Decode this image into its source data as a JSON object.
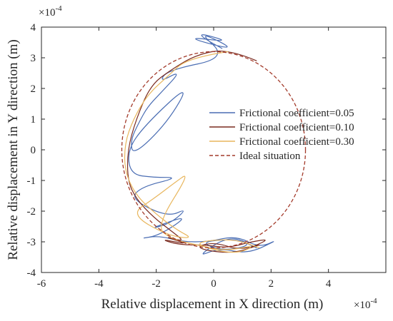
{
  "chart_data": {
    "type": "line",
    "title": "",
    "xlabel": "Relative displacement in X direction (m)",
    "ylabel": "Relative displacement in Y direction (m)",
    "xlim": [
      -6,
      6
    ],
    "ylim": [
      -4,
      4
    ],
    "x_scale_label": "×10",
    "x_scale_exp": "-4",
    "y_scale_label": "×10",
    "y_scale_exp": "-4",
    "xticks": [
      -6,
      -4,
      -2,
      0,
      2,
      4
    ],
    "yticks": [
      -4,
      -3,
      -2,
      -1,
      0,
      1,
      2,
      3,
      4
    ],
    "grid": false,
    "legend_position": "right",
    "series": [
      {
        "name": "Frictional coefficient=0.05",
        "color": "#4a6db3",
        "style": "solid",
        "x": [
          0.3,
          -0.9,
          0.7,
          -1.1,
          0.9,
          -0.6,
          0.5,
          -1.6,
          -1.9,
          -1.1,
          -1.9,
          -2.3,
          -2.6,
          -2.9,
          -2.8,
          -1.6,
          -0.8,
          -2.4,
          -3.0,
          -2.9,
          -2.1,
          -1.2,
          -2.5,
          -2.9,
          -1.6,
          -0.9,
          -1.5,
          -2.3,
          -0.8,
          -1.9,
          -2.6,
          -1.9,
          -1.1,
          -0.2,
          0.8,
          1.6,
          2.3,
          1.2,
          0.2,
          -0.6,
          0.5,
          1.4,
          0.3,
          -0.5,
          0.8,
          1.5
        ],
        "y": [
          3.3,
          3.9,
          3.5,
          3.7,
          3.2,
          3.9,
          3.0,
          2.6,
          2.2,
          2.6,
          1.8,
          1.4,
          0.9,
          0.3,
          -0.2,
          0.9,
          2.2,
          0.8,
          0.0,
          -0.8,
          -0.9,
          -0.9,
          -1.2,
          -1.6,
          -2.2,
          -1.9,
          -2.4,
          -2.6,
          -2.1,
          -2.8,
          -2.9,
          -2.8,
          -3.0,
          -3.0,
          -2.8,
          -3.2,
          -2.9,
          -3.4,
          -3.2,
          -3.5,
          -2.8,
          -3.1,
          -3.3,
          -3.0,
          -2.9,
          -3.2
        ]
      },
      {
        "name": "Frictional coefficient=0.10",
        "color": "#7a2a1f",
        "style": "solid",
        "x": [
          1.5,
          0.5,
          -0.6,
          -1.5,
          -2.2,
          -2.7,
          -3.0,
          -3.0,
          -2.7,
          -2.1,
          -1.4,
          -1.0,
          -1.8,
          -0.8,
          -1.9,
          -1.2,
          -0.3,
          0.5,
          1.3,
          2.0,
          1.0,
          0.0,
          -0.7,
          0.6,
          1.6
        ],
        "y": [
          2.9,
          3.3,
          3.1,
          2.6,
          2.1,
          1.0,
          0.0,
          -1.0,
          -1.6,
          -2.2,
          -2.7,
          -3.0,
          -2.8,
          -3.1,
          -2.9,
          -3.1,
          -3.1,
          -3.2,
          -3.0,
          -2.9,
          -3.3,
          -3.0,
          -3.2,
          -3.4,
          -3.1
        ]
      },
      {
        "name": "Frictional coefficient=0.30",
        "color": "#e8b65d",
        "style": "solid",
        "x": [
          0.5,
          -0.9,
          -1.6,
          -2.3,
          -2.8,
          -3.1,
          -3.1,
          -2.7,
          -2.0,
          -1.3,
          -0.7,
          -1.6,
          -2.9,
          -2.1,
          -1.4,
          -0.8,
          -2.0,
          -1.5,
          -0.6,
          0.4,
          1.5,
          0.8,
          -0.3,
          -0.6,
          0.7,
          1.6
        ],
        "y": [
          3.2,
          3.0,
          2.4,
          1.8,
          1.0,
          0.2,
          -0.7,
          -1.5,
          -2.1,
          -2.6,
          -2.9,
          -2.8,
          -2.1,
          -1.6,
          -1.1,
          -0.7,
          -2.5,
          -2.9,
          -3.1,
          -3.3,
          -3.1,
          -3.4,
          -3.2,
          -3.0,
          -2.9,
          -3.2
        ]
      },
      {
        "name": "Ideal situation",
        "color": "#a33a2a",
        "style": "dashed",
        "circle": {
          "cx": 0,
          "cy": 0,
          "r": 3.2
        }
      }
    ]
  }
}
